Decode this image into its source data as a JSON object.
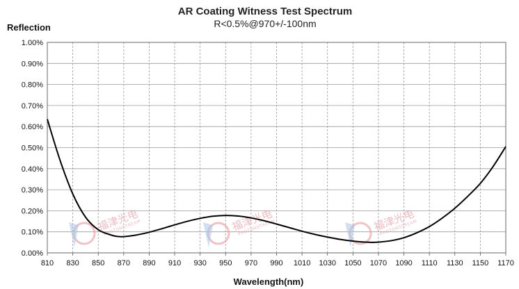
{
  "chart_data": {
    "type": "line",
    "title": "AR Coating Witness Test Spectrum",
    "subtitle": "R<0.5%@970+/-100nm",
    "xlabel": "Wavelength(nm)",
    "ylabel": "Reflection",
    "xlim": [
      810,
      1170
    ],
    "ylim": [
      0,
      1.0
    ],
    "x_ticks": [
      810,
      830,
      850,
      870,
      890,
      910,
      930,
      950,
      970,
      990,
      1010,
      1030,
      1050,
      1070,
      1090,
      1110,
      1130,
      1150,
      1170
    ],
    "y_ticks": [
      "0.00%",
      "0.10%",
      "0.20%",
      "0.30%",
      "0.40%",
      "0.50%",
      "0.60%",
      "0.70%",
      "0.80%",
      "0.90%",
      "1.00%"
    ],
    "y_tick_values": [
      0,
      0.1,
      0.2,
      0.3,
      0.4,
      0.5,
      0.6,
      0.7,
      0.8,
      0.9,
      1.0
    ],
    "grid": true,
    "series": [
      {
        "color": "#000000",
        "x": [
          810,
          820,
          830,
          840,
          850,
          860,
          865,
          870,
          880,
          890,
          900,
          910,
          920,
          930,
          940,
          950,
          960,
          970,
          980,
          990,
          1000,
          1010,
          1020,
          1030,
          1040,
          1050,
          1060,
          1065,
          1070,
          1080,
          1090,
          1100,
          1110,
          1120,
          1130,
          1140,
          1150,
          1160,
          1170
        ],
        "y": [
          0.635,
          0.44,
          0.28,
          0.17,
          0.11,
          0.085,
          0.078,
          0.077,
          0.085,
          0.098,
          0.115,
          0.133,
          0.15,
          0.164,
          0.174,
          0.178,
          0.175,
          0.166,
          0.153,
          0.137,
          0.12,
          0.103,
          0.088,
          0.075,
          0.064,
          0.056,
          0.051,
          0.05,
          0.051,
          0.058,
          0.072,
          0.095,
          0.125,
          0.165,
          0.212,
          0.268,
          0.33,
          0.41,
          0.505
        ]
      }
    ]
  },
  "watermark": {
    "text": "福津光电",
    "subtext": "PHOTONSTREAM",
    "color": "#e9a6ad"
  }
}
